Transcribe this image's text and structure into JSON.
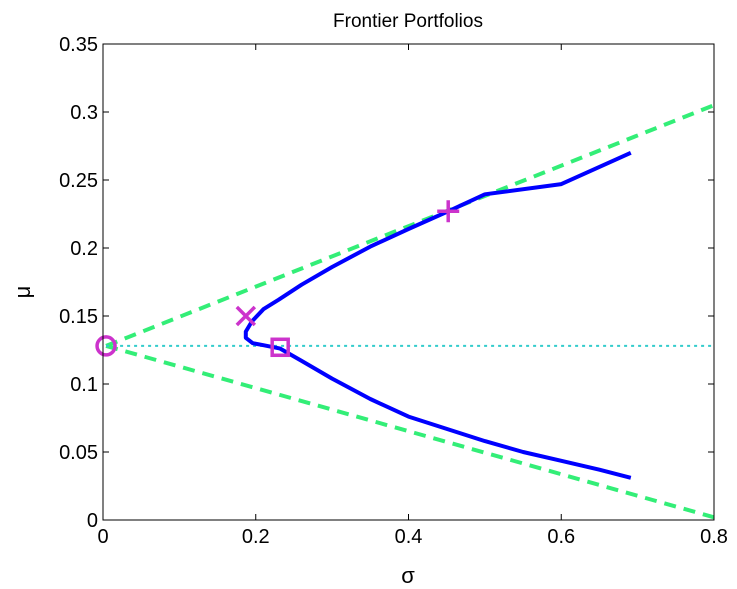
{
  "chart_data": {
    "type": "line",
    "title": "Frontier Portfolios",
    "xlabel": "σ",
    "ylabel": "μ",
    "xlim": [
      0,
      0.8
    ],
    "ylim": [
      0,
      0.35
    ],
    "xticks": [
      0,
      0.2,
      0.4,
      0.6,
      0.8
    ],
    "xtick_labels": [
      "0",
      "0.2",
      "0.4",
      "0.6",
      "0.8"
    ],
    "yticks": [
      0,
      0.05,
      0.1,
      0.15,
      0.2,
      0.25,
      0.3,
      0.35
    ],
    "ytick_labels": [
      "0",
      "0.05",
      "0.1",
      "0.15",
      "0.2",
      "0.25",
      "0.3",
      "0.35"
    ],
    "grid": false,
    "series": [
      {
        "style": "solid",
        "color": "#0000ff",
        "points": [
          [
            0.691,
            0.27
          ],
          [
            0.6,
            0.247
          ],
          [
            0.5,
            0.2395
          ],
          [
            0.452,
            0.227
          ],
          [
            0.4,
            0.214
          ],
          [
            0.35,
            0.201
          ],
          [
            0.3,
            0.186
          ],
          [
            0.26,
            0.173
          ],
          [
            0.23,
            0.162
          ],
          [
            0.21,
            0.155
          ],
          [
            0.195,
            0.146
          ],
          [
            0.187,
            0.1385
          ],
          [
            0.187,
            0.134
          ],
          [
            0.196,
            0.13
          ],
          [
            0.21,
            0.1285
          ],
          [
            0.232,
            0.126
          ],
          [
            0.26,
            0.117
          ],
          [
            0.3,
            0.104
          ],
          [
            0.35,
            0.089
          ],
          [
            0.4,
            0.076
          ],
          [
            0.45,
            0.067
          ],
          [
            0.5,
            0.058
          ],
          [
            0.55,
            0.05
          ],
          [
            0.6,
            0.0435
          ],
          [
            0.65,
            0.037
          ],
          [
            0.691,
            0.031
          ]
        ]
      },
      {
        "style": "dashed",
        "color": "#33ee77",
        "points": [
          [
            0.004,
            0.128
          ],
          [
            0.8,
            0.305
          ]
        ]
      },
      {
        "style": "dashed",
        "color": "#33ee77",
        "points": [
          [
            0.004,
            0.128
          ],
          [
            0.8,
            0.002
          ]
        ]
      },
      {
        "style": "dotted",
        "color": "#33cccc",
        "points": [
          [
            0.004,
            0.128
          ],
          [
            0.8,
            0.128
          ]
        ]
      }
    ],
    "markers": [
      {
        "shape": "circle",
        "color": "#cc33cc",
        "x": 0.004,
        "y": 0.128
      },
      {
        "shape": "x",
        "color": "#cc33cc",
        "x": 0.187,
        "y": 0.15
      },
      {
        "shape": "square",
        "color": "#cc33cc",
        "x": 0.232,
        "y": 0.127
      },
      {
        "shape": "plus",
        "color": "#cc33cc",
        "x": 0.452,
        "y": 0.227
      }
    ]
  }
}
